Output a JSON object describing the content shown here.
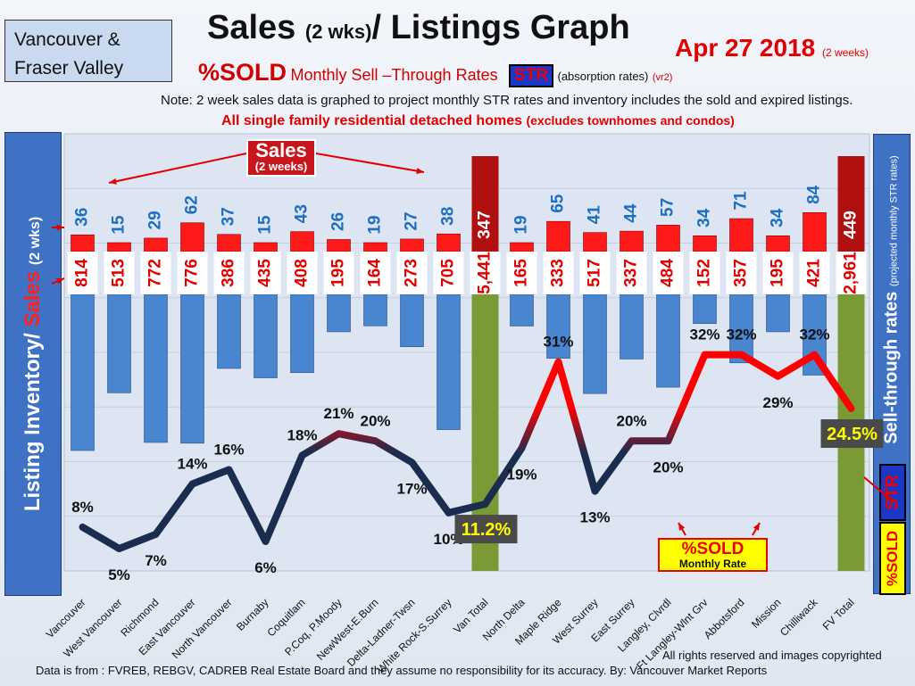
{
  "header": {
    "region_line1": "Vancouver &",
    "region_line2": "Fraser Valley",
    "title_main": "Sales",
    "title_small": "(2 wks)",
    "title_rest": "/ Listings Graph",
    "date": "Apr 27  2018",
    "date_small": "(2 weeks)",
    "subtitle_big": "%SOLD",
    "subtitle_mid": "Monthly Sell –Through Rates",
    "subtitle_str": "STR",
    "subtitle_note": "(absorption rates)",
    "subtitle_version": "(vr2)",
    "note": "Note: 2 week sales data is graphed to project monthly STR rates and inventory includes the sold and expired listings.",
    "detached": "All single family residential detached homes",
    "detached_small": "(excludes townhomes and condos)"
  },
  "axes": {
    "left_label_a": "Listing Inventory",
    "left_label_sep": "/ ",
    "left_label_b": "Sales",
    "left_label_c": "(2  wks)",
    "right_label": "Sell-through rates",
    "right_label_small": "(projected monthly STR rates)"
  },
  "legend": {
    "str": "STR",
    "sold": "%SOLD",
    "badge_line1": "%SOLD",
    "badge_line2": "Monthly Rate",
    "sales_callout_line1": "Sales",
    "sales_callout_line2": "(2 weeks)"
  },
  "footer": {
    "rights": "All rights reserved and  images copyrighted",
    "source": "Data is from : FVREB, REBGV, CADREB Real Estate Board and they assume  no responsibility for its accuracy. By: Vancouver Market Reports"
  },
  "colors": {
    "sales_bar": "#ff1a1a",
    "inventory_bar": "#4a86d0",
    "total_bar": "#7a9a35",
    "total_sales": "#b01010",
    "str_high": "#ff0000",
    "str_low": "#1b2d4f",
    "sales_label": "#1f6fc0",
    "inventory_label": "#e00000"
  },
  "chart_data": {
    "type": "bar",
    "categories": [
      "Vancouver",
      "West Vancouver",
      "Richmond",
      "East Vancouver",
      "North Vancouver",
      "Burnaby",
      "Coquitlam",
      "P.Coq, P.Moody",
      "NewWest-E.Burn",
      "Delta-Ladner-Twsn",
      "White Rock-S.Surrey",
      "Van Total",
      "North Delta",
      "Maple Ridge",
      "West Surrey",
      "East Surrey",
      "Langley, Clvrdl",
      "Ft Langley-Wlnt Grv",
      "Abbotsford",
      "Mission",
      "Chilliwack",
      "FV Total"
    ],
    "series": [
      {
        "name": "Sales",
        "values": [
          36,
          15,
          29,
          62,
          37,
          15,
          43,
          26,
          19,
          27,
          38,
          347,
          19,
          65,
          41,
          44,
          57,
          34,
          71,
          34,
          84,
          449
        ],
        "labels": [
          "36",
          "15",
          "29",
          "62",
          "37",
          "15",
          "43",
          "26",
          "19",
          "27",
          "38",
          "347",
          "19",
          "65",
          "41",
          "44",
          "57",
          "34",
          "71",
          "34",
          "84",
          "449"
        ]
      },
      {
        "name": "Listing Inventory",
        "values": [
          814,
          513,
          772,
          776,
          386,
          435,
          408,
          195,
          164,
          273,
          705,
          5441,
          165,
          333,
          517,
          337,
          484,
          152,
          357,
          195,
          421,
          2961
        ],
        "labels": [
          "814",
          "513",
          "772",
          "776",
          "386",
          "435",
          "408",
          "195",
          "164",
          "273",
          "705",
          "5,441",
          "165",
          "333",
          "517",
          "337",
          "484",
          "152",
          "357",
          "195",
          "421",
          "2,961"
        ]
      },
      {
        "name": "%SOLD",
        "values": [
          8,
          5,
          7,
          14,
          16,
          6,
          18,
          21,
          20,
          17,
          10,
          11.2,
          19,
          31,
          13,
          20,
          20,
          32,
          32,
          29,
          32,
          24.5
        ],
        "labels": [
          "8%",
          "5%",
          "7%",
          "14%",
          "16%",
          "6%",
          "18%",
          "21%",
          "20%",
          "17%",
          "10%",
          "11.2%",
          "19%",
          "31%",
          "13%",
          "20%",
          "20%",
          "32%",
          "32%",
          "29%",
          "32%",
          "24.5%"
        ]
      }
    ],
    "total_categories": [
      "Van Total",
      "FV Total"
    ]
  }
}
